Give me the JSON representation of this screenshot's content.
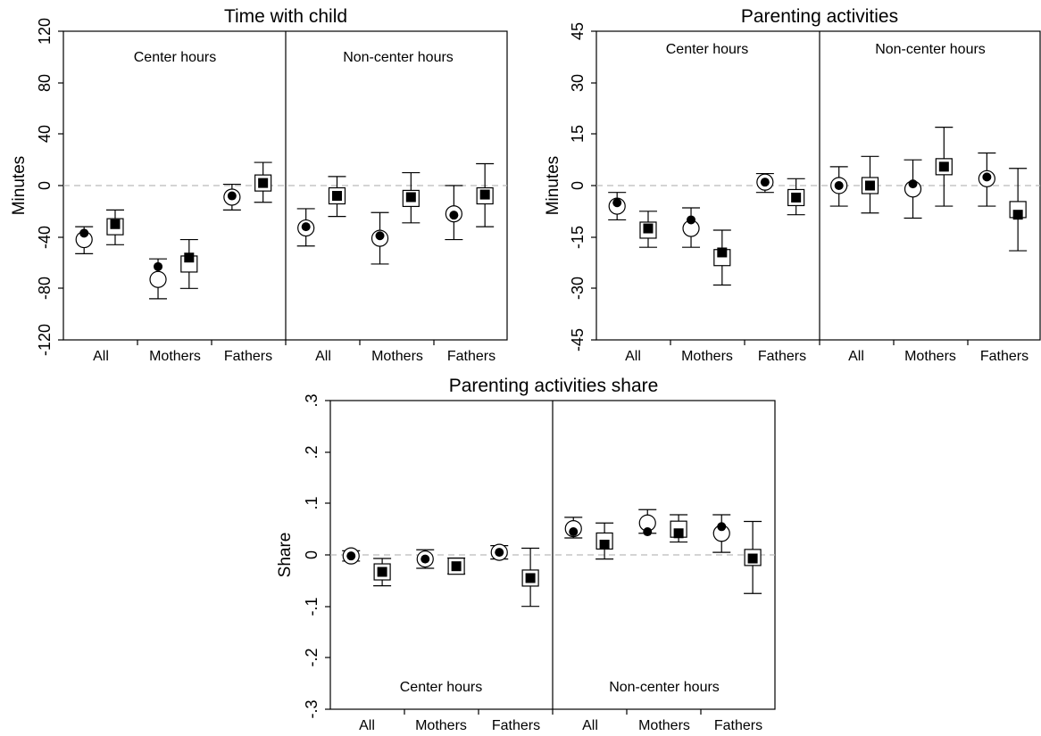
{
  "figure": {
    "panels": [
      {
        "title": "Time with child",
        "ylabel": "Minutes",
        "sections": [
          "Center hours",
          "Non-center hours"
        ],
        "categories": [
          "All",
          "Mothers",
          "Fathers",
          "All",
          "Mothers",
          "Fathers"
        ],
        "ticks": [
          "120",
          "80",
          "40",
          "0",
          "-40",
          "-80",
          "-120"
        ]
      },
      {
        "title": "Parenting activities",
        "ylabel": "Minutes",
        "sections": [
          "Center hours",
          "Non-center hours"
        ],
        "categories": [
          "All",
          "Mothers",
          "Fathers",
          "All",
          "Mothers",
          "Fathers"
        ],
        "ticks": [
          "45",
          "30",
          "15",
          "0",
          "-15",
          "-30",
          "-45"
        ]
      },
      {
        "title": "Parenting activities share",
        "ylabel": "Share",
        "sections": [
          "Center hours",
          "Non-center hours"
        ],
        "categories": [
          "All",
          "Mothers",
          "Fathers",
          "All",
          "Mothers",
          "Fathers"
        ],
        "ticks": [
          ".3",
          ".2",
          ".1",
          "0",
          "-.1",
          "-.2",
          "-.3"
        ]
      }
    ]
  },
  "chart_data": [
    {
      "type": "scatter",
      "title": "Time with child",
      "ylabel": "Minutes",
      "ylim": [
        -120,
        120
      ],
      "yticks": [
        120,
        80,
        40,
        0,
        -40,
        -80,
        -120
      ],
      "sections": [
        "Center hours",
        "Non-center hours"
      ],
      "groups": [
        "All",
        "Mothers",
        "Fathers"
      ],
      "reference_line": 0,
      "points": [
        {
          "section": "Center hours",
          "group": "All",
          "marker": "circle",
          "estimate": -42,
          "dot": -37,
          "ci": [
            -53,
            -32
          ]
        },
        {
          "section": "Center hours",
          "group": "All",
          "marker": "square",
          "estimate": -32,
          "dot": -30,
          "ci": [
            -46,
            -19
          ]
        },
        {
          "section": "Center hours",
          "group": "Mothers",
          "marker": "circle",
          "estimate": -73,
          "dot": -63,
          "ci": [
            -88,
            -57
          ]
        },
        {
          "section": "Center hours",
          "group": "Mothers",
          "marker": "square",
          "estimate": -61,
          "dot": -56,
          "ci": [
            -80,
            -42
          ]
        },
        {
          "section": "Center hours",
          "group": "Fathers",
          "marker": "circle",
          "estimate": -9,
          "dot": -8,
          "ci": [
            -19,
            1
          ]
        },
        {
          "section": "Center hours",
          "group": "Fathers",
          "marker": "square",
          "estimate": 2,
          "dot": 2,
          "ci": [
            -13,
            18
          ]
        },
        {
          "section": "Non-center hours",
          "group": "All",
          "marker": "circle",
          "estimate": -33,
          "dot": -32,
          "ci": [
            -47,
            -18
          ]
        },
        {
          "section": "Non-center hours",
          "group": "All",
          "marker": "square",
          "estimate": -8,
          "dot": -8,
          "ci": [
            -24,
            7
          ]
        },
        {
          "section": "Non-center hours",
          "group": "Mothers",
          "marker": "circle",
          "estimate": -41,
          "dot": -39,
          "ci": [
            -61,
            -21
          ]
        },
        {
          "section": "Non-center hours",
          "group": "Mothers",
          "marker": "square",
          "estimate": -10,
          "dot": -9,
          "ci": [
            -29,
            10
          ]
        },
        {
          "section": "Non-center hours",
          "group": "Fathers",
          "marker": "circle",
          "estimate": -22,
          "dot": -23,
          "ci": [
            -42,
            0
          ]
        },
        {
          "section": "Non-center hours",
          "group": "Fathers",
          "marker": "square",
          "estimate": -8,
          "dot": -7,
          "ci": [
            -32,
            17
          ]
        }
      ]
    },
    {
      "type": "scatter",
      "title": "Parenting activities",
      "ylabel": "Minutes",
      "ylim": [
        -45,
        45
      ],
      "yticks": [
        45,
        30,
        15,
        0,
        -15,
        -30,
        -45
      ],
      "sections": [
        "Center hours",
        "Non-center hours"
      ],
      "groups": [
        "All",
        "Mothers",
        "Fathers"
      ],
      "reference_line": 0,
      "points": [
        {
          "section": "Center hours",
          "group": "All",
          "marker": "circle",
          "estimate": -6,
          "dot": -5,
          "ci": [
            -10,
            -2
          ]
        },
        {
          "section": "Center hours",
          "group": "All",
          "marker": "square",
          "estimate": -13,
          "dot": -12.5,
          "ci": [
            -18,
            -7.5
          ]
        },
        {
          "section": "Center hours",
          "group": "Mothers",
          "marker": "circle",
          "estimate": -12.5,
          "dot": -10,
          "ci": [
            -18,
            -6.5
          ]
        },
        {
          "section": "Center hours",
          "group": "Mothers",
          "marker": "square",
          "estimate": -21,
          "dot": -19.5,
          "ci": [
            -29,
            -13
          ]
        },
        {
          "section": "Center hours",
          "group": "Fathers",
          "marker": "circle",
          "estimate": 1,
          "dot": 1,
          "ci": [
            -2,
            3.5
          ]
        },
        {
          "section": "Center hours",
          "group": "Fathers",
          "marker": "square",
          "estimate": -3.5,
          "dot": -3.5,
          "ci": [
            -8.5,
            2
          ]
        },
        {
          "section": "Non-center hours",
          "group": "All",
          "marker": "circle",
          "estimate": 0,
          "dot": 0,
          "ci": [
            -6,
            5.5
          ]
        },
        {
          "section": "Non-center hours",
          "group": "All",
          "marker": "square",
          "estimate": 0,
          "dot": 0,
          "ci": [
            -8,
            8.5
          ]
        },
        {
          "section": "Non-center hours",
          "group": "Mothers",
          "marker": "circle",
          "estimate": -1,
          "dot": 0.5,
          "ci": [
            -9.5,
            7.5
          ]
        },
        {
          "section": "Non-center hours",
          "group": "Mothers",
          "marker": "square",
          "estimate": 5.5,
          "dot": 5.5,
          "ci": [
            -6,
            17
          ]
        },
        {
          "section": "Non-center hours",
          "group": "Fathers",
          "marker": "circle",
          "estimate": 2,
          "dot": 2.5,
          "ci": [
            -6,
            9.5
          ]
        },
        {
          "section": "Non-center hours",
          "group": "Fathers",
          "marker": "square",
          "estimate": -7,
          "dot": -8.5,
          "ci": [
            -19,
            5
          ]
        }
      ]
    },
    {
      "type": "scatter",
      "title": "Parenting activities share",
      "ylabel": "Share",
      "ylim": [
        -0.3,
        0.3
      ],
      "yticks": [
        0.3,
        0.2,
        0.1,
        0,
        -0.1,
        -0.2,
        -0.3
      ],
      "sections": [
        "Center hours",
        "Non-center hours"
      ],
      "groups": [
        "All",
        "Mothers",
        "Fathers"
      ],
      "reference_line": 0,
      "points": [
        {
          "section": "Center hours",
          "group": "All",
          "marker": "circle",
          "estimate": -0.002,
          "dot": -0.002,
          "ci": [
            -0.012,
            0.008
          ]
        },
        {
          "section": "Center hours",
          "group": "All",
          "marker": "square",
          "estimate": -0.033,
          "dot": -0.033,
          "ci": [
            -0.06,
            -0.007
          ]
        },
        {
          "section": "Center hours",
          "group": "Mothers",
          "marker": "circle",
          "estimate": -0.008,
          "dot": -0.008,
          "ci": [
            -0.026,
            0.01
          ]
        },
        {
          "section": "Center hours",
          "group": "Mothers",
          "marker": "square",
          "estimate": -0.022,
          "dot": -0.022,
          "ci": [
            -0.037,
            -0.006
          ]
        },
        {
          "section": "Center hours",
          "group": "Fathers",
          "marker": "circle",
          "estimate": 0.005,
          "dot": 0.005,
          "ci": [
            -0.008,
            0.018
          ]
        },
        {
          "section": "Center hours",
          "group": "Fathers",
          "marker": "square",
          "estimate": -0.045,
          "dot": -0.045,
          "ci": [
            -0.1,
            0.013
          ]
        },
        {
          "section": "Non-center hours",
          "group": "All",
          "marker": "circle",
          "estimate": 0.051,
          "dot": 0.045,
          "ci": [
            0.033,
            0.073
          ]
        },
        {
          "section": "Non-center hours",
          "group": "All",
          "marker": "square",
          "estimate": 0.027,
          "dot": 0.02,
          "ci": [
            -0.008,
            0.062
          ]
        },
        {
          "section": "Non-center hours",
          "group": "Mothers",
          "marker": "circle",
          "estimate": 0.062,
          "dot": 0.045,
          "ci": [
            0.042,
            0.088
          ]
        },
        {
          "section": "Non-center hours",
          "group": "Mothers",
          "marker": "square",
          "estimate": 0.05,
          "dot": 0.042,
          "ci": [
            0.025,
            0.078
          ]
        },
        {
          "section": "Non-center hours",
          "group": "Fathers",
          "marker": "circle",
          "estimate": 0.042,
          "dot": 0.055,
          "ci": [
            0.005,
            0.078
          ]
        },
        {
          "section": "Non-center hours",
          "group": "Fathers",
          "marker": "square",
          "estimate": -0.005,
          "dot": -0.007,
          "ci": [
            -0.075,
            0.065
          ]
        }
      ]
    }
  ]
}
